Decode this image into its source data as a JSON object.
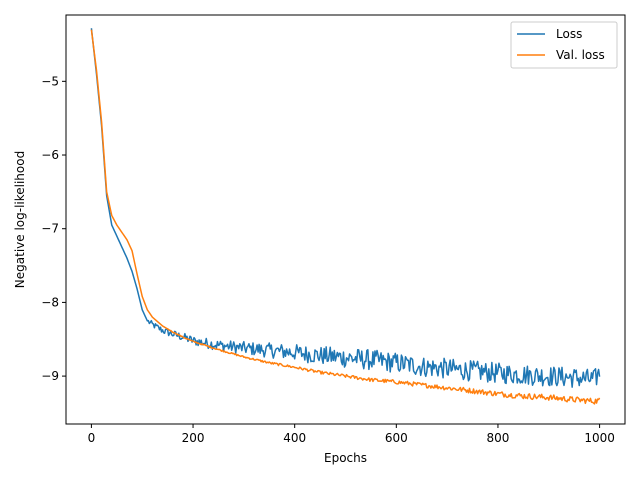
{
  "chart_data": {
    "type": "line",
    "title": "",
    "xlabel": "Epochs",
    "ylabel": "Negative log-likelihood",
    "xlim": [
      -50,
      1050
    ],
    "ylim": [
      -9.65,
      -4.1
    ],
    "xticks": [
      0,
      200,
      400,
      600,
      800,
      1000
    ],
    "yticks": [
      -5,
      -6,
      -7,
      -8,
      -9
    ],
    "xtick_labels": [
      "0",
      "200",
      "400",
      "600",
      "800",
      "1000"
    ],
    "ytick_labels": [
      "−5",
      "−6",
      "−7",
      "−8",
      "−9"
    ],
    "grid": false,
    "legend": {
      "position": "top-right"
    },
    "series": [
      {
        "name": "Loss",
        "color": "#1f77b4",
        "style": "noisy",
        "x": [
          0,
          10,
          20,
          30,
          40,
          50,
          60,
          70,
          80,
          90,
          100,
          110,
          120,
          140,
          160,
          180,
          200,
          250,
          300,
          350,
          400,
          450,
          500,
          550,
          600,
          650,
          700,
          750,
          800,
          850,
          900,
          950,
          990,
          1000
        ],
        "y": [
          -4.28,
          -4.9,
          -5.6,
          -6.55,
          -6.95,
          -7.1,
          -7.25,
          -7.4,
          -7.58,
          -7.82,
          -8.1,
          -8.25,
          -8.3,
          -8.38,
          -8.43,
          -8.47,
          -8.52,
          -8.58,
          -8.62,
          -8.65,
          -8.68,
          -8.72,
          -8.75,
          -8.78,
          -8.82,
          -8.87,
          -8.9,
          -8.93,
          -8.96,
          -8.98,
          -9.0,
          -9.02,
          -9.05,
          -8.95
        ]
      },
      {
        "name": "Val. loss",
        "color": "#ff7f0e",
        "style": "noisy-late",
        "x": [
          0,
          10,
          20,
          30,
          40,
          50,
          60,
          70,
          80,
          90,
          100,
          110,
          120,
          140,
          160,
          180,
          200,
          250,
          300,
          350,
          400,
          450,
          500,
          550,
          600,
          650,
          700,
          750,
          800,
          850,
          900,
          950,
          990,
          1000
        ],
        "y": [
          -4.3,
          -4.85,
          -5.55,
          -6.5,
          -6.82,
          -6.95,
          -7.05,
          -7.15,
          -7.3,
          -7.62,
          -7.92,
          -8.1,
          -8.2,
          -8.32,
          -8.4,
          -8.47,
          -8.53,
          -8.64,
          -8.74,
          -8.82,
          -8.88,
          -8.95,
          -9.0,
          -9.05,
          -9.08,
          -9.12,
          -9.16,
          -9.2,
          -9.24,
          -9.27,
          -9.29,
          -9.32,
          -9.34,
          -9.33
        ]
      }
    ]
  }
}
